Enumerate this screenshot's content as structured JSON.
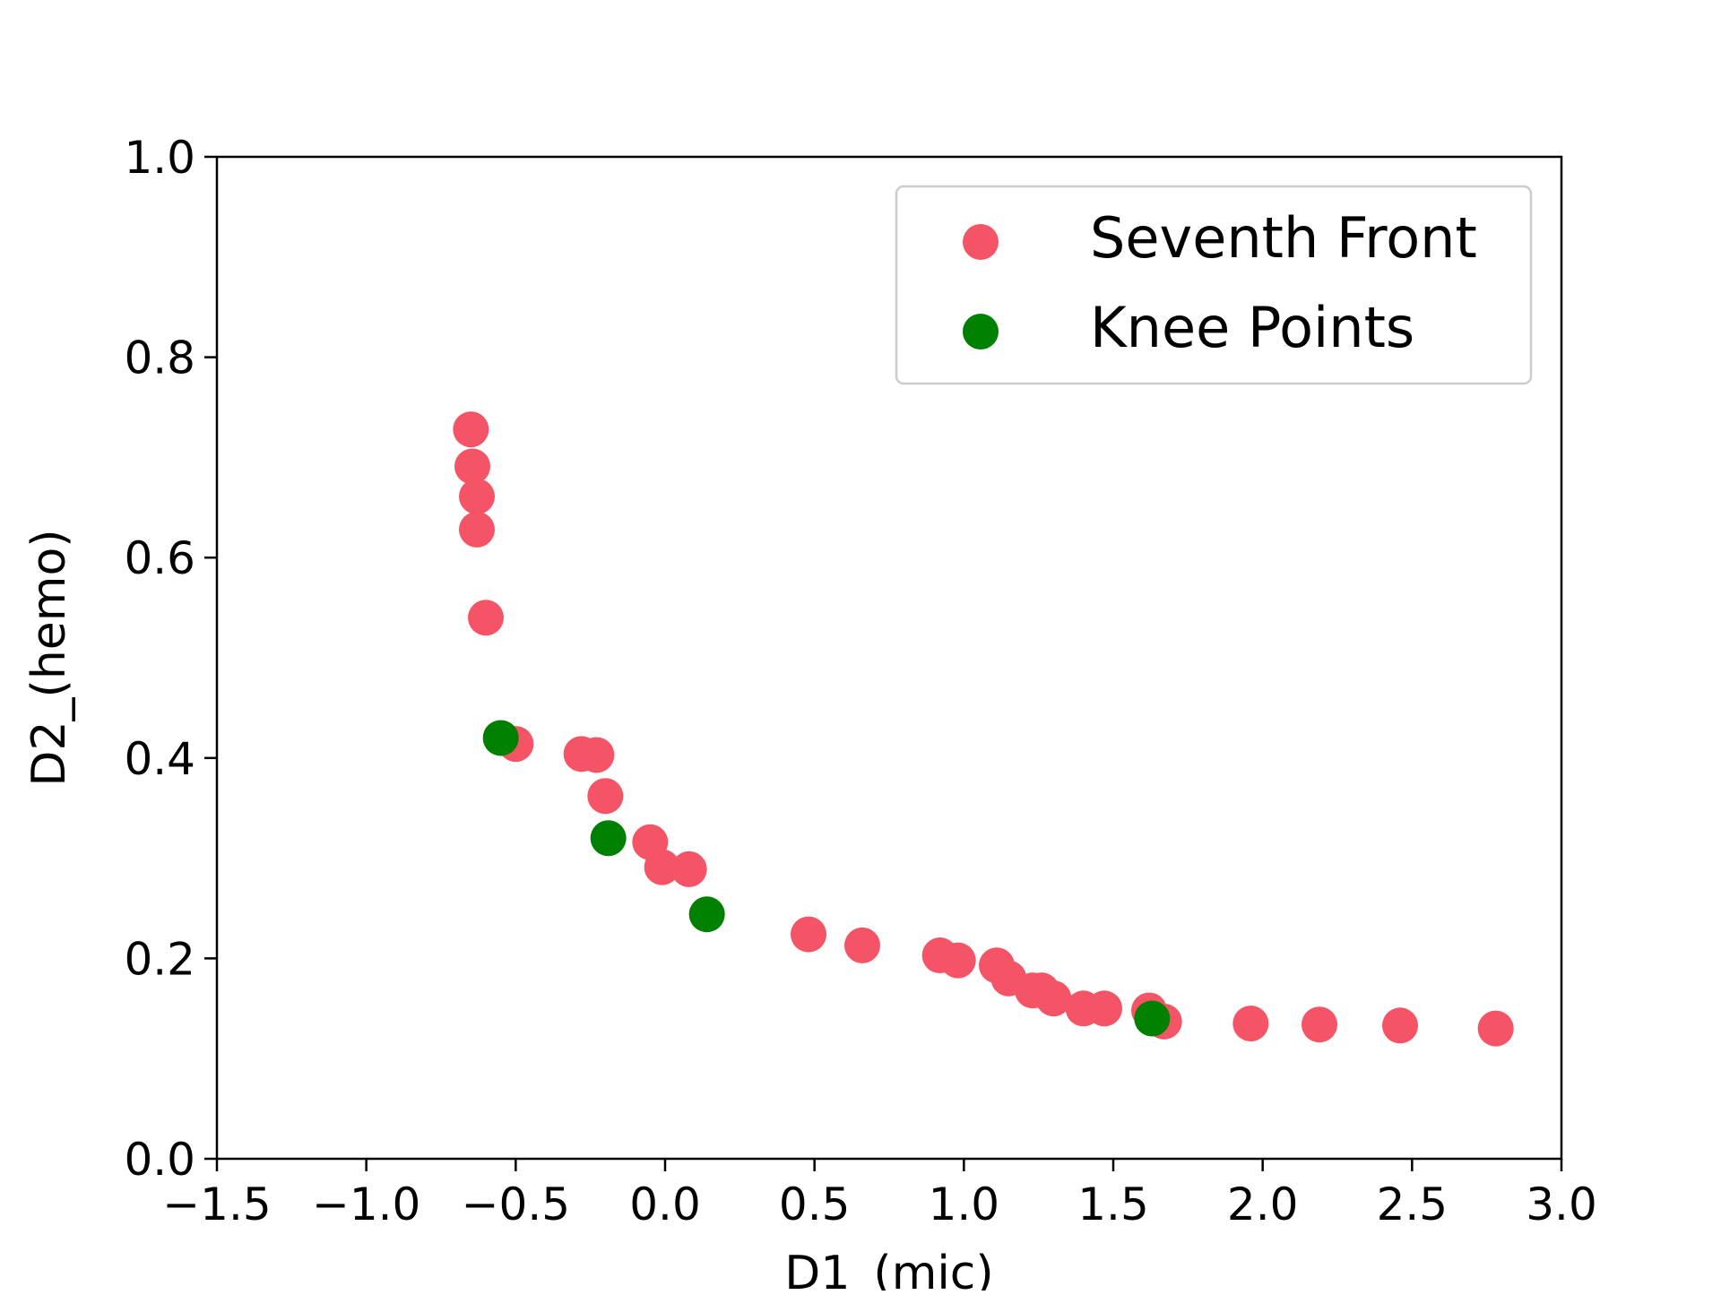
{
  "chart_data": {
    "type": "scatter",
    "title": "",
    "xlabel": "D1_(mic)",
    "ylabel": "D2_(hemo)",
    "xlim": [
      -1.5,
      3.0
    ],
    "ylim": [
      0.0,
      1.0
    ],
    "xticks": [
      -1.5,
      -1.0,
      -0.5,
      0.0,
      0.5,
      1.0,
      1.5,
      2.0,
      2.5,
      3.0
    ],
    "yticks": [
      0.0,
      0.2,
      0.4,
      0.6,
      0.8,
      1.0
    ],
    "xtick_labels": [
      "−1.5",
      "−1.0",
      "−0.5",
      "0.0",
      "0.5",
      "1.0",
      "1.5",
      "2.0",
      "2.5",
      "3.0"
    ],
    "ytick_labels": [
      "0.0",
      "0.2",
      "0.4",
      "0.6",
      "0.8",
      "1.0"
    ],
    "grid": false,
    "legend_position": "top-right",
    "series": [
      {
        "name": "Seventh Front",
        "color": "#f45466",
        "points": [
          [
            -0.65,
            0.728
          ],
          [
            -0.645,
            0.691
          ],
          [
            -0.63,
            0.661
          ],
          [
            -0.63,
            0.628
          ],
          [
            -0.6,
            0.54
          ],
          [
            -0.5,
            0.414
          ],
          [
            -0.28,
            0.404
          ],
          [
            -0.23,
            0.403
          ],
          [
            -0.2,
            0.362
          ],
          [
            -0.05,
            0.316
          ],
          [
            -0.01,
            0.291
          ],
          [
            0.08,
            0.289
          ],
          [
            0.48,
            0.224
          ],
          [
            0.66,
            0.213
          ],
          [
            0.92,
            0.203
          ],
          [
            0.98,
            0.198
          ],
          [
            1.11,
            0.193
          ],
          [
            1.15,
            0.18
          ],
          [
            1.23,
            0.168
          ],
          [
            1.26,
            0.168
          ],
          [
            1.3,
            0.16
          ],
          [
            1.4,
            0.15
          ],
          [
            1.47,
            0.15
          ],
          [
            1.62,
            0.148
          ],
          [
            1.67,
            0.137
          ],
          [
            1.96,
            0.135
          ],
          [
            2.19,
            0.134
          ],
          [
            2.46,
            0.133
          ],
          [
            2.78,
            0.13
          ]
        ]
      },
      {
        "name": "Knee Points",
        "color": "#008000",
        "points": [
          [
            -0.55,
            0.42
          ],
          [
            -0.19,
            0.32
          ],
          [
            0.14,
            0.244
          ],
          [
            1.63,
            0.14
          ]
        ]
      }
    ]
  }
}
